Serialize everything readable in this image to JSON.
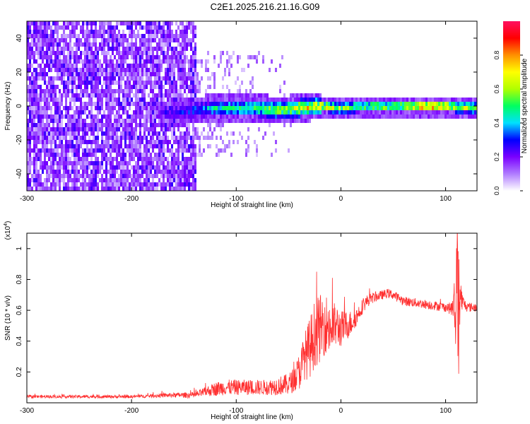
{
  "title": "C2E1.2025.216.21.16.G09",
  "chart_data": [
    {
      "type": "heatmap",
      "title": "C2E1.2025.216.21.16.G09",
      "xlabel": "Height of straight line (km)",
      "ylabel": "Frequency (Hz)",
      "xlim": [
        -300,
        130
      ],
      "ylim": [
        -50,
        50
      ],
      "xticks": [
        -300,
        -200,
        -100,
        0,
        100
      ],
      "yticks": [
        -40,
        -20,
        0,
        20,
        40
      ],
      "grid": false,
      "colorbar": {
        "label": "Normalized spectral amplitude",
        "range": [
          0,
          1
        ],
        "ticks": [
          "0.0",
          "0.2",
          "0.4",
          "0.6",
          "0.8"
        ],
        "colors": [
          "#ffffff",
          "#b07cff",
          "#7a00ff",
          "#0000ff",
          "#00e0ff",
          "#00ff60",
          "#b0ff00",
          "#ffff00",
          "#ff9000",
          "#ff0000",
          "#ff1060"
        ]
      },
      "description_regions": {
        "noise_band": {
          "x_from": -300,
          "x_to": -138,
          "freq_from": -50,
          "freq_to": 50,
          "level": 0.25
        },
        "sparse_band": {
          "x_from": -138,
          "x_to": -40,
          "freq_from": -30,
          "freq_to": 35,
          "level": 0.08
        },
        "signal_ridge": {
          "x": [
            -160,
            -140,
            -120,
            -100,
            -80,
            -60,
            -40,
            -20,
            0,
            20,
            40,
            60,
            80,
            100,
            130
          ],
          "center_freq": [
            -3,
            -1,
            0,
            0,
            0,
            -1,
            0,
            1,
            0,
            1,
            1,
            1,
            1,
            1,
            0
          ],
          "amplitude": [
            0.25,
            0.35,
            0.45,
            0.5,
            0.55,
            0.6,
            0.7,
            0.75,
            0.6,
            0.6,
            0.62,
            0.65,
            0.9,
            0.75,
            0.6
          ]
        }
      }
    },
    {
      "type": "line",
      "xlabel": "Height of straight line (km)",
      "ylabel": "SNR (10 * v/v)",
      "y_multiplier": "(x10^4)",
      "y_multiplier_base": "(x10",
      "y_multiplier_exp": "4",
      "y_multiplier_close": ")",
      "xlim": [
        -300,
        130
      ],
      "ylim": [
        0,
        1.1
      ],
      "xticks": [
        -300,
        -200,
        -100,
        0,
        100
      ],
      "yticks": [
        0.2,
        0.4,
        0.6,
        0.8,
        1
      ],
      "grid": false,
      "series": [
        {
          "color": "#ff3030",
          "x": [
            -300,
            -280,
            -260,
            -240,
            -220,
            -200,
            -180,
            -160,
            -140,
            -130,
            -120,
            -110,
            -100,
            -90,
            -80,
            -70,
            -60,
            -50,
            -45,
            -40,
            -35,
            -30,
            -25,
            -20,
            -15,
            -10,
            -5,
            0,
            5,
            10,
            15,
            20,
            25,
            30,
            35,
            40,
            45,
            50,
            55,
            60,
            70,
            80,
            90,
            100,
            105,
            108,
            110,
            112,
            114,
            116,
            120,
            125,
            130
          ],
          "values": [
            0.04,
            0.04,
            0.04,
            0.04,
            0.04,
            0.04,
            0.045,
            0.05,
            0.05,
            0.07,
            0.09,
            0.1,
            0.1,
            0.1,
            0.1,
            0.1,
            0.11,
            0.12,
            0.15,
            0.2,
            0.3,
            0.35,
            0.45,
            0.48,
            0.52,
            0.48,
            0.5,
            0.48,
            0.5,
            0.52,
            0.56,
            0.62,
            0.66,
            0.68,
            0.69,
            0.7,
            0.71,
            0.7,
            0.68,
            0.66,
            0.65,
            0.64,
            0.63,
            0.62,
            0.61,
            0.62,
            0.5,
            0.35,
            0.7,
            0.66,
            0.62,
            0.62,
            0.62
          ],
          "noise": [
            0.01,
            0.01,
            0.01,
            0.01,
            0.01,
            0.01,
            0.012,
            0.015,
            0.02,
            0.03,
            0.045,
            0.05,
            0.05,
            0.05,
            0.05,
            0.05,
            0.06,
            0.07,
            0.08,
            0.12,
            0.15,
            0.2,
            0.22,
            0.22,
            0.2,
            0.18,
            0.15,
            0.12,
            0.1,
            0.08,
            0.06,
            0.05,
            0.04,
            0.035,
            0.03,
            0.03,
            0.03,
            0.03,
            0.03,
            0.03,
            0.03,
            0.03,
            0.03,
            0.03,
            0.04,
            0.1,
            0.25,
            0.3,
            0.15,
            0.05,
            0.03,
            0.03,
            0.03
          ]
        }
      ]
    }
  ]
}
